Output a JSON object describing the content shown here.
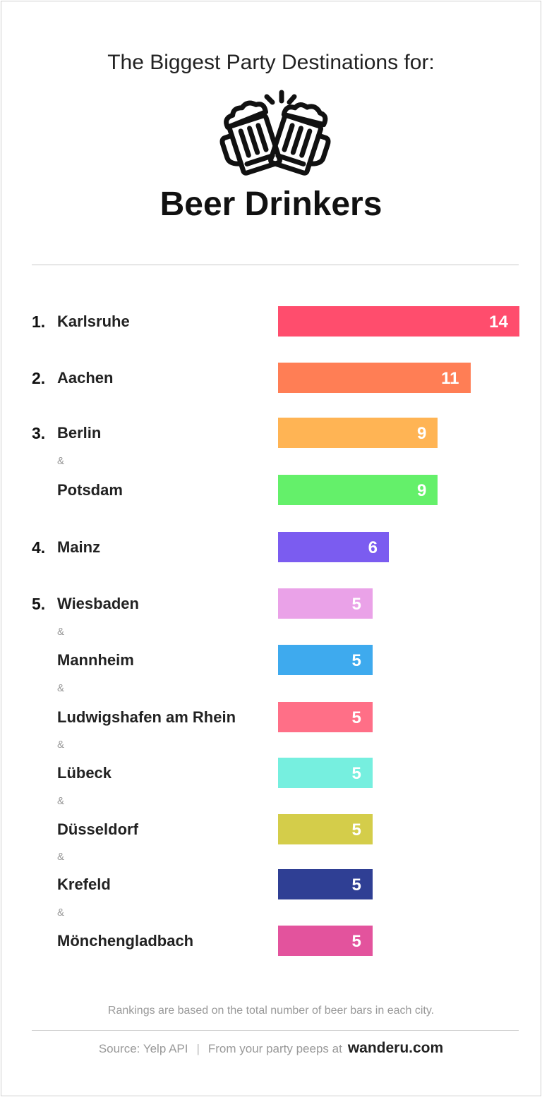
{
  "header": {
    "title": "The Biggest Party Destinations for:",
    "subtitle": "Beer Drinkers",
    "icon": "beer-mugs-cheers-icon"
  },
  "chart_data": {
    "type": "bar",
    "orientation": "horizontal",
    "title": "The Biggest Party Destinations for: Beer Drinkers",
    "separator": "&",
    "items": [
      {
        "rank": "1.",
        "city": "Karlsruhe",
        "value": 14,
        "color": "#ff4d6d"
      },
      {
        "rank": "2.",
        "city": "Aachen",
        "value": 11,
        "color": "#ff7e55"
      },
      {
        "rank": "3.",
        "city": "Berlin",
        "value": 9,
        "color": "#ffb454"
      },
      {
        "rank": "",
        "city": "Potsdam",
        "value": 9,
        "color": "#64f06a"
      },
      {
        "rank": "4.",
        "city": "Mainz",
        "value": 6,
        "color": "#7b5cf0"
      },
      {
        "rank": "5.",
        "city": "Wiesbaden",
        "value": 5,
        "color": "#eaa2e8"
      },
      {
        "rank": "",
        "city": "Mannheim",
        "value": 5,
        "color": "#3eaaee"
      },
      {
        "rank": "",
        "city": "Ludwigshafen am Rhein",
        "value": 5,
        "color": "#ff6f87"
      },
      {
        "rank": "",
        "city": "Lübeck",
        "value": 5,
        "color": "#76efdf"
      },
      {
        "rank": "",
        "city": "Düsseldorf",
        "value": 5,
        "color": "#d4cd4a"
      },
      {
        "rank": "",
        "city": "Krefeld",
        "value": 5,
        "color": "#2f3f94"
      },
      {
        "rank": "",
        "city": "Mönchengladbach",
        "value": 5,
        "color": "#e3539d"
      }
    ]
  },
  "footer": {
    "note": "Rankings are based on the total number of beer bars in each city.",
    "source": "Source: Yelp API",
    "divider": "|",
    "credit": "From your party peeps at",
    "brand": "wanderu.com"
  }
}
